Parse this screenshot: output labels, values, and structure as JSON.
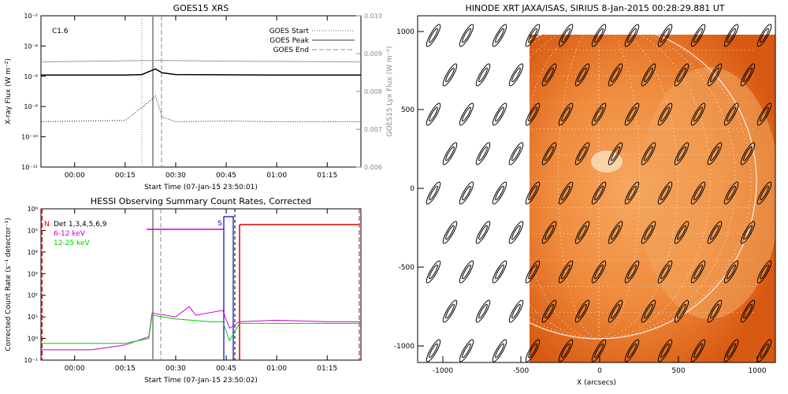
{
  "goes": {
    "title": "GOES15 XRS",
    "class_label": "C1.6",
    "xlabel": "Start Time (07-Jan-15 23:50:01)",
    "ylabel_left": "X-ray Flux (W m⁻²)",
    "ylabel_right": "GOES15 Lyx Flux (W m⁻²)",
    "legend": {
      "start": "GOES Start",
      "peak": "GOES Peak",
      "end": "GOES End"
    },
    "xticks": [
      "00:00",
      "00:15",
      "00:30",
      "00:45",
      "01:00",
      "01:15"
    ],
    "yticks_left": [
      "10⁻²",
      "10⁻⁴",
      "10⁻⁶",
      "10⁻⁸",
      "10⁻¹⁰",
      "10⁻¹²"
    ],
    "yticks_right": [
      "0.010",
      "0.009",
      "0.008",
      "0.007",
      "0.006"
    ]
  },
  "hessi": {
    "title": "HESSI Observing Summary Count Rates, Corrected",
    "xlabel": "Start Time (07-Jan-15 23:50:02)",
    "ylabel": "Corrected Count Rate (s⁻¹ detector⁻¹)",
    "flags": {
      "n": "N",
      "s": "S"
    },
    "legend": {
      "det": "Det 1,3,4,5,6,9",
      "band1": "6-12 keV",
      "band2": "12-25 keV"
    },
    "xticks": [
      "00:00",
      "00:15",
      "00:30",
      "00:45",
      "01:00",
      "01:15"
    ],
    "yticks": [
      "10⁶",
      "10⁵",
      "10⁴",
      "10³",
      "10²",
      "10¹",
      "10⁰",
      "10⁻¹"
    ]
  },
  "xrt": {
    "title": "HINODE XRT JAXA/ISAS, SIRIUS   8-Jan-2015 00:28:29.881 UT",
    "xlabel": "X (arcsecs)",
    "xticks": [
      "-1000",
      "-500",
      "0",
      "500",
      "1000"
    ],
    "yticks": [
      "1000",
      "500",
      "0",
      "-500",
      "-1000"
    ]
  },
  "chart_data": [
    {
      "type": "line",
      "title": "GOES15 XRS",
      "xlabel": "Start Time (07-Jan-15 23:50:01)",
      "ylabel": "X-ray Flux (W m⁻²)",
      "y2label": "GOES15 Lyx Flux (W m⁻²)",
      "xlim": [
        "23:50",
        "01:25"
      ],
      "ylim": [
        1e-12,
        0.01
      ],
      "y2lim": [
        0.006,
        0.01
      ],
      "yscale": "log",
      "annotation": "C1.6",
      "vlines": {
        "start": "00:20",
        "peak": "00:24",
        "end": "00:27"
      },
      "series": [
        {
          "name": "",
          "x": [
            "23:50",
            "00:15",
            "00:20",
            "00:23",
            "00:24",
            "00:26",
            "00:30",
            "01:00",
            "01:25"
          ],
          "values": [
            1.2e-06,
            1.2e-06,
            1.3e-06,
            2.5e-06,
            3e-06,
            1.7e-06,
            1.3e-06,
            1.2e-06,
            1.2e-06
          ]
        },
        {
          "name": "",
          "x": [
            "23:50",
            "00:15",
            "00:23",
            "00:24",
            "00:26",
            "00:30",
            "00:45",
            "01:00",
            "01:25"
          ],
          "values": [
            1e-09,
            1.2e-09,
            3e-08,
            5e-08,
            2e-09,
            1e-09,
            1.1e-09,
            1e-09,
            1e-09
          ]
        },
        {
          "name": "",
          "x": [
            "23:50",
            "00:24",
            "00:45",
            "01:25"
          ],
          "values": [
            0.00878,
            0.00882,
            0.0088,
            0.00878
          ],
          "axis": "right"
        }
      ]
    },
    {
      "type": "line",
      "title": "HESSI Observing Summary Count Rates, Corrected",
      "xlabel": "Start Time (07-Jan-15 23:50:02)",
      "ylabel": "Corrected Count Rate (s⁻¹ detector⁻¹)",
      "xlim": [
        "23:50",
        "01:25"
      ],
      "ylim": [
        0.1,
        1000000.0
      ],
      "yscale": "log",
      "legend": [
        "Det 1,3,4,5,6,9",
        "6-12 keV",
        "12-25 keV"
      ],
      "flags": {
        "N": {
          "from": "23:50",
          "to": "23:50",
          "level": 100000.0
        },
        "S": {
          "from": "00:45",
          "to": "00:47",
          "level": 300000.0
        }
      },
      "series": [
        {
          "name": "6-12 keV",
          "x": [
            "23:50",
            "00:05",
            "00:15",
            "00:22",
            "00:23",
            "00:30",
            "00:34",
            "00:36",
            "00:44",
            "00:46",
            "00:49",
            "01:00",
            "01:15",
            "01:25"
          ],
          "values": [
            0.3,
            0.3,
            0.5,
            1.2,
            15,
            10,
            30,
            12,
            20,
            3,
            6,
            7,
            6,
            6
          ]
        },
        {
          "name": "12-25 keV",
          "x": [
            "23:50",
            "00:05",
            "00:15",
            "00:22",
            "00:23",
            "00:30",
            "00:40",
            "00:44",
            "00:46",
            "00:49",
            "01:00",
            "01:15",
            "01:25"
          ],
          "values": [
            0.6,
            0.6,
            0.6,
            1.0,
            12,
            8,
            6,
            6,
            0.8,
            5,
            5,
            5,
            5
          ]
        }
      ]
    }
  ]
}
